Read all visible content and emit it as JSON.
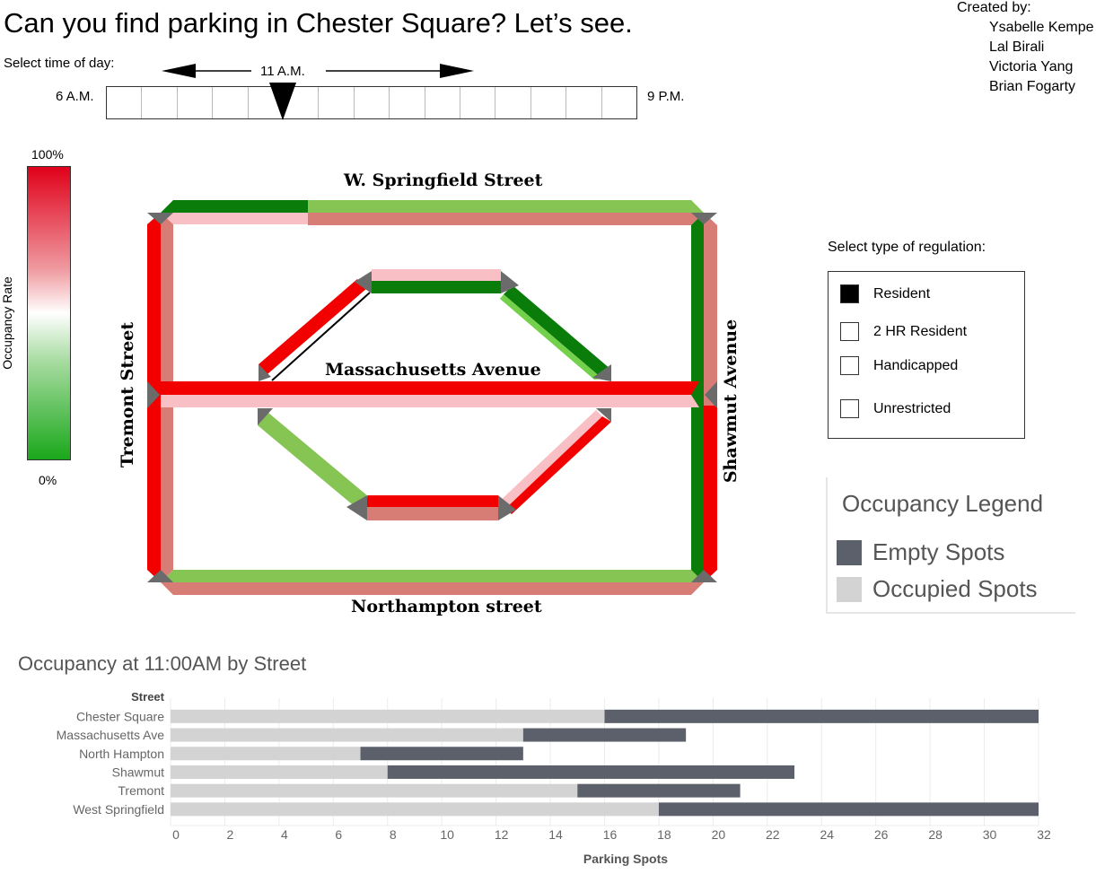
{
  "title": "Can you find parking in Chester Square? Let’s see.",
  "credits": {
    "heading": "Created by:",
    "names": [
      "Ysabelle Kempe",
      "Lal Birali",
      "Victoria Yang",
      "Brian Fogarty"
    ]
  },
  "time_slider": {
    "label": "Select time of day:",
    "current": "11 A.M.",
    "start": "6 A.M.",
    "end": "9 P.M.",
    "segments": 15,
    "position_fraction": 0.333
  },
  "occupancy_scale": {
    "title": "Occupancy Rate",
    "top": "100%",
    "bottom": "0%",
    "colors": {
      "high": "#e0001a",
      "mid": "#ffffff",
      "low": "#1aa81a"
    }
  },
  "map": {
    "streets": {
      "w_springfield": "W. Springfield Street",
      "massachusetts": "Massachusetts Avenue",
      "northampton": "Northampton street",
      "tremont": "Tremont Street",
      "shawmut": "Shawmut Avenue"
    },
    "colors": {
      "red": "#f20000",
      "salmon": "#d87c76",
      "pink": "#f8c0c4",
      "dark_green": "#0a7c0a",
      "light_green": "#86c453",
      "bright_green": "#72d04a",
      "gray": "#6b6b6b"
    }
  },
  "regulation": {
    "title": "Select type of regulation:",
    "options": [
      {
        "label": "Resident",
        "checked": true
      },
      {
        "label": "2 HR Resident",
        "checked": false
      },
      {
        "label": "Handicapped",
        "checked": false
      },
      {
        "label": "Unrestricted",
        "checked": false
      }
    ]
  },
  "occupancy_legend": {
    "title": "Occupancy Legend",
    "items": [
      {
        "label": "Empty Spots",
        "color": "#5c606b"
      },
      {
        "label": "Occupied Spots",
        "color": "#d3d3d3"
      }
    ]
  },
  "chart_data": {
    "type": "bar",
    "orientation": "horizontal",
    "stacked": true,
    "title": "Occupancy at 11:00AM by Street",
    "ylabel": "Street",
    "xlabel": "Parking Spots",
    "categories": [
      "Chester Square",
      "Massachusetts Ave",
      "North Hampton",
      "Shawmut",
      "Tremont",
      "West Springfield"
    ],
    "series": [
      {
        "name": "Occupied Spots",
        "color": "#d3d3d3",
        "values": [
          16,
          13,
          7,
          8,
          15,
          18
        ]
      },
      {
        "name": "Empty Spots",
        "color": "#5c606b",
        "values": [
          16,
          6,
          6,
          15,
          6,
          14
        ]
      }
    ],
    "xlim": [
      0,
      32
    ],
    "xticks": [
      0,
      2,
      4,
      6,
      8,
      10,
      12,
      14,
      16,
      18,
      20,
      22,
      24,
      26,
      28,
      30,
      32
    ],
    "grid": true
  }
}
